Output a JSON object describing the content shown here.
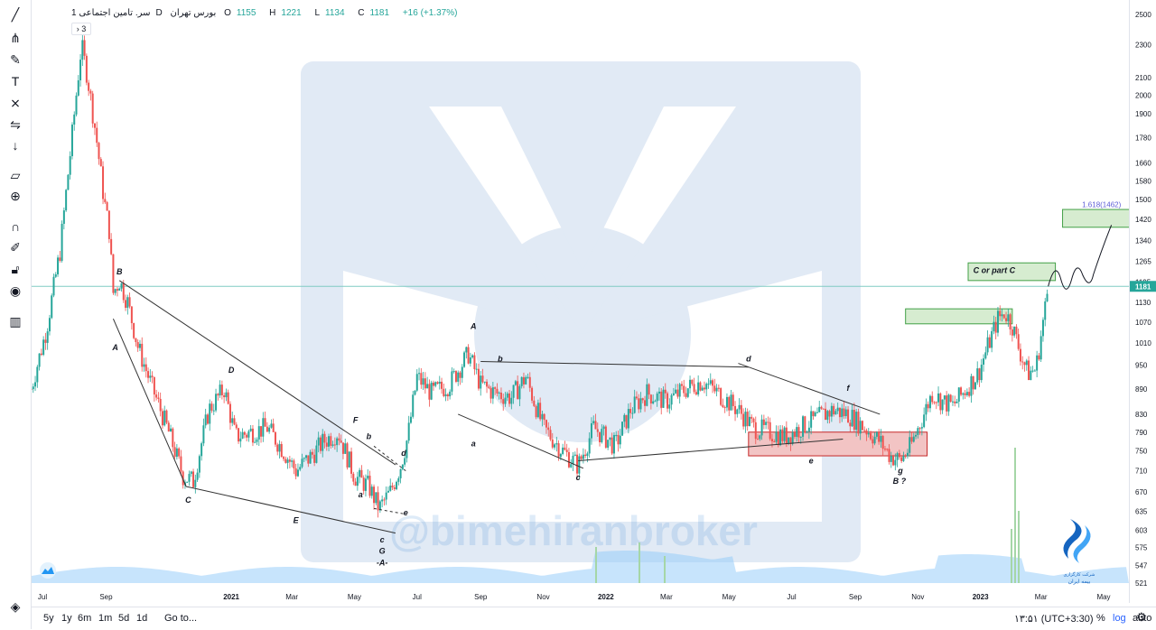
{
  "toolbar": {
    "icons": [
      "trend-line-icon",
      "pitchfork-icon",
      "brush-icon",
      "text-icon",
      "pattern-icon",
      "forecast-icon",
      "arrow-down-icon",
      "ruler-icon",
      "zoom-in-icon",
      "magnet-icon",
      "lock-drawings-icon",
      "lock-icon",
      "eye-icon",
      "trash-icon",
      "layers-icon"
    ]
  },
  "legend": {
    "symbol": "سر. تامین اجتماعی",
    "interval": "1D",
    "exchange": "بورس تهران",
    "o_label": "O",
    "o_value": "1155",
    "h_label": "H",
    "h_value": "1221",
    "l_label": "L",
    "l_value": "1134",
    "c_label": "C",
    "c_value": "1181",
    "change": "+16 (+1.37%)",
    "collapse": "3"
  },
  "colors": {
    "up": "#26a69a",
    "down": "#ef5350",
    "volume": "#90caf9",
    "last_price_line": "#80cbc4",
    "green_box": "#d6ecd0",
    "red_box": "#f2c4c4"
  },
  "chart_data": {
    "type": "candlestick",
    "y_scale": "log",
    "price_ticks": [
      2500,
      2300,
      2100,
      2000,
      1900,
      1780,
      1660,
      1580,
      1500,
      1420,
      1340,
      1265,
      1195,
      1130,
      1070,
      1010,
      950,
      890,
      830,
      790,
      750,
      710,
      670,
      635,
      603,
      575,
      547,
      521
    ],
    "last_price": "1181",
    "x_ticks": [
      "Jul",
      "Sep",
      "2021",
      "Mar",
      "May",
      "Jul",
      "Sep",
      "Nov",
      "2022",
      "Mar",
      "May",
      "Jul",
      "Sep",
      "Nov",
      "2023",
      "Mar",
      "May"
    ],
    "price_path": [
      {
        "d": "2020-06-20",
        "p": 890
      },
      {
        "d": "2020-07-05",
        "p": 1050
      },
      {
        "d": "2020-07-18",
        "p": 1300
      },
      {
        "d": "2020-07-28",
        "p": 1700
      },
      {
        "d": "2020-08-08",
        "p": 2300
      },
      {
        "d": "2020-08-14",
        "p": 2100
      },
      {
        "d": "2020-08-22",
        "p": 1800
      },
      {
        "d": "2020-08-30",
        "p": 1500
      },
      {
        "d": "2020-09-04",
        "p": 1380
      },
      {
        "d": "2020-09-08",
        "p": 1160
      },
      {
        "d": "2020-09-14",
        "p": 1200
      },
      {
        "d": "2020-09-22",
        "p": 1130
      },
      {
        "d": "2020-10-02",
        "p": 1000
      },
      {
        "d": "2020-10-15",
        "p": 900
      },
      {
        "d": "2020-11-01",
        "p": 790
      },
      {
        "d": "2020-11-15",
        "p": 700
      },
      {
        "d": "2020-11-25",
        "p": 690
      },
      {
        "d": "2020-12-10",
        "p": 840
      },
      {
        "d": "2020-12-25",
        "p": 890
      },
      {
        "d": "2021-01-05",
        "p": 780
      },
      {
        "d": "2021-01-20",
        "p": 790
      },
      {
        "d": "2021-02-05",
        "p": 800
      },
      {
        "d": "2021-02-18",
        "p": 760
      },
      {
        "d": "2021-03-05",
        "p": 710
      },
      {
        "d": "2021-03-20",
        "p": 740
      },
      {
        "d": "2021-04-01",
        "p": 770
      },
      {
        "d": "2021-04-15",
        "p": 790
      },
      {
        "d": "2021-05-01",
        "p": 700
      },
      {
        "d": "2021-05-15",
        "p": 680
      },
      {
        "d": "2021-05-25",
        "p": 640
      },
      {
        "d": "2021-06-05",
        "p": 670
      },
      {
        "d": "2021-06-15",
        "p": 720
      },
      {
        "d": "2021-06-22",
        "p": 780
      },
      {
        "d": "2021-07-01",
        "p": 920
      },
      {
        "d": "2021-07-15",
        "p": 880
      },
      {
        "d": "2021-08-01",
        "p": 900
      },
      {
        "d": "2021-08-20",
        "p": 980
      },
      {
        "d": "2021-09-01",
        "p": 900
      },
      {
        "d": "2021-09-15",
        "p": 880
      },
      {
        "d": "2021-10-01",
        "p": 870
      },
      {
        "d": "2021-10-15",
        "p": 920
      },
      {
        "d": "2021-11-01",
        "p": 800
      },
      {
        "d": "2021-11-20",
        "p": 750
      },
      {
        "d": "2021-12-05",
        "p": 720
      },
      {
        "d": "2021-12-20",
        "p": 800
      },
      {
        "d": "2022-01-10",
        "p": 760
      },
      {
        "d": "2022-01-25",
        "p": 840
      },
      {
        "d": "2022-02-10",
        "p": 880
      },
      {
        "d": "2022-03-01",
        "p": 860
      },
      {
        "d": "2022-03-20",
        "p": 890
      },
      {
        "d": "2022-04-05",
        "p": 910
      },
      {
        "d": "2022-04-20",
        "p": 880
      },
      {
        "d": "2022-05-10",
        "p": 840
      },
      {
        "d": "2022-05-25",
        "p": 800
      },
      {
        "d": "2022-06-10",
        "p": 790
      },
      {
        "d": "2022-06-25",
        "p": 780
      },
      {
        "d": "2022-07-10",
        "p": 800
      },
      {
        "d": "2022-07-25",
        "p": 820
      },
      {
        "d": "2022-08-10",
        "p": 840
      },
      {
        "d": "2022-08-25",
        "p": 830
      },
      {
        "d": "2022-09-10",
        "p": 800
      },
      {
        "d": "2022-09-25",
        "p": 770
      },
      {
        "d": "2022-10-05",
        "p": 740
      },
      {
        "d": "2022-10-15",
        "p": 730
      },
      {
        "d": "2022-10-25",
        "p": 760
      },
      {
        "d": "2022-11-05",
        "p": 820
      },
      {
        "d": "2022-11-15",
        "p": 880
      },
      {
        "d": "2022-11-25",
        "p": 860
      },
      {
        "d": "2022-12-05",
        "p": 850
      },
      {
        "d": "2022-12-15",
        "p": 880
      },
      {
        "d": "2022-12-30",
        "p": 930
      },
      {
        "d": "2023-01-08",
        "p": 1000
      },
      {
        "d": "2023-01-18",
        "p": 1080
      },
      {
        "d": "2023-01-25",
        "p": 1100
      },
      {
        "d": "2023-02-01",
        "p": 1060
      },
      {
        "d": "2023-02-08",
        "p": 990
      },
      {
        "d": "2023-02-16",
        "p": 930
      },
      {
        "d": "2023-02-24",
        "p": 940
      },
      {
        "d": "2023-03-02",
        "p": 1050
      },
      {
        "d": "2023-03-08",
        "p": 1181
      }
    ],
    "wave_labels": [
      {
        "text": "B",
        "d": "2020-09-14",
        "p": 1220
      },
      {
        "text": "A",
        "d": "2020-09-10",
        "p": 990
      },
      {
        "text": "C",
        "d": "2020-11-20",
        "p": 650
      },
      {
        "text": "D",
        "d": "2021-01-01",
        "p": 930
      },
      {
        "text": "E",
        "d": "2021-03-05",
        "p": 615
      },
      {
        "text": "F",
        "d": "2021-05-02",
        "p": 810
      },
      {
        "text": "b",
        "d": "2021-05-15",
        "p": 775
      },
      {
        "text": "d",
        "d": "2021-06-18",
        "p": 740
      },
      {
        "text": "a",
        "d": "2021-05-07",
        "p": 660
      },
      {
        "text": "e",
        "d": "2021-06-20",
        "p": 628
      },
      {
        "text": "c",
        "d": "2021-05-28",
        "p": 583
      },
      {
        "text": "G",
        "d": "2021-05-28",
        "p": 565
      },
      {
        "text": "-A-",
        "d": "2021-05-28",
        "p": 547
      },
      {
        "text": "A",
        "d": "2021-08-25",
        "p": 1050
      },
      {
        "text": "b",
        "d": "2021-09-20",
        "p": 960
      },
      {
        "text": "a",
        "d": "2021-08-25",
        "p": 760
      },
      {
        "text": "c",
        "d": "2021-12-05",
        "p": 692
      },
      {
        "text": "d",
        "d": "2022-05-20",
        "p": 960
      },
      {
        "text": "e",
        "d": "2022-07-20",
        "p": 725
      },
      {
        "text": "f",
        "d": "2022-08-25",
        "p": 885
      },
      {
        "text": "g",
        "d": "2022-10-15",
        "p": 705
      },
      {
        "text": "B ?",
        "d": "2022-10-14",
        "p": 685
      }
    ],
    "annotations": [
      {
        "text": "C or part C"
      },
      {
        "text": "1.618(1462)"
      }
    ]
  },
  "watermark": "@bimehiranbroker",
  "bottom": {
    "ranges": [
      "5y",
      "1y",
      "6m",
      "1m",
      "5d",
      "1d"
    ],
    "goto": "Go to...",
    "tz": "۱۳:۵۱ (UTC+3:30)",
    "percent": "%",
    "log": "log",
    "auto": "auto"
  }
}
